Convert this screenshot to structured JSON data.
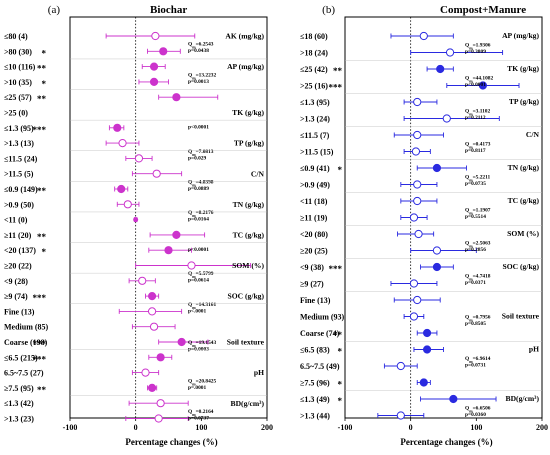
{
  "chart_data": [
    {
      "panel": "(a)",
      "title": "Biochar",
      "type": "forest",
      "xlabel": "Percentage changes (%)",
      "xlim": [
        -100,
        200
      ],
      "xticks": [
        "-100",
        "0",
        "100",
        "200"
      ],
      "color": "#cc33cc",
      "rows": [
        {
          "label": "≤80 (4)",
          "mean": 30,
          "lo": -45,
          "hi": 90,
          "filled": false,
          "sig": ""
        },
        {
          "label": ">80 (30)",
          "mean": 42,
          "lo": 18,
          "hi": 68,
          "filled": true,
          "sig": "*"
        },
        {
          "label": "≤10 (116)",
          "mean": 28,
          "lo": 10,
          "hi": 45,
          "filled": true,
          "sig": "**"
        },
        {
          "label": ">10 (35)",
          "mean": 28,
          "lo": 5,
          "hi": 50,
          "filled": true,
          "sig": "*"
        },
        {
          "label": "≤25 (57)",
          "mean": 62,
          "lo": 35,
          "hi": 125,
          "filled": true,
          "sig": "**"
        },
        {
          "label": ">25 (0)",
          "mean": null,
          "lo": null,
          "hi": null,
          "filled": false,
          "sig": ""
        },
        {
          "label": "≤1.3 (95)",
          "mean": -28,
          "lo": -40,
          "hi": -18,
          "filled": true,
          "sig": "***"
        },
        {
          "label": ">1.3 (13)",
          "mean": -20,
          "lo": -45,
          "hi": 5,
          "filled": false,
          "sig": ""
        },
        {
          "label": "≤11.5 (24)",
          "mean": 5,
          "lo": -15,
          "hi": 25,
          "filled": false,
          "sig": ""
        },
        {
          "label": ">11.5 (5)",
          "mean": 32,
          "lo": -5,
          "hi": 70,
          "filled": false,
          "sig": ""
        },
        {
          "label": "≤0.9 (149)",
          "mean": -22,
          "lo": -32,
          "hi": -12,
          "filled": true,
          "sig": "**"
        },
        {
          "label": ">0.9 (50)",
          "mean": -12,
          "lo": -28,
          "hi": 5,
          "filled": false,
          "sig": ""
        },
        {
          "label": "<11 (0)",
          "mean": 0,
          "lo": -2,
          "hi": 2,
          "filled": true,
          "sig": ""
        },
        {
          "label": "≥11 (20)",
          "mean": 62,
          "lo": 22,
          "hi": 105,
          "filled": true,
          "sig": "**"
        },
        {
          "label": "<20 (137)",
          "mean": 50,
          "lo": 20,
          "hi": 85,
          "filled": true,
          "sig": "*"
        },
        {
          "label": "≥20 (22)",
          "mean": 85,
          "lo": 0,
          "hi": 175,
          "filled": false,
          "sig": ""
        },
        {
          "label": "<9 (28)",
          "mean": 10,
          "lo": -10,
          "hi": 30,
          "filled": false,
          "sig": ""
        },
        {
          "label": "≥9 (74)",
          "mean": 25,
          "lo": 15,
          "hi": 35,
          "filled": true,
          "sig": "***"
        },
        {
          "label": "Fine (13)",
          "mean": 25,
          "lo": -25,
          "hi": 70,
          "filled": false,
          "sig": ""
        },
        {
          "label": "Medium (85)",
          "mean": 28,
          "lo": -5,
          "hi": 60,
          "filled": false,
          "sig": ""
        },
        {
          "label": "Coarse (198)",
          "mean": 70,
          "lo": 35,
          "hi": 110,
          "filled": true,
          "sig": "***"
        },
        {
          "label": "≤6.5 (215)",
          "mean": 38,
          "lo": 20,
          "hi": 55,
          "filled": true,
          "sig": "***"
        },
        {
          "label": "6.5~7.5 (27)",
          "mean": 15,
          "lo": -5,
          "hi": 35,
          "filled": false,
          "sig": ""
        },
        {
          "label": "≥7.5 (95)",
          "mean": 25,
          "lo": 18,
          "hi": 32,
          "filled": true,
          "sig": "**"
        },
        {
          "label": "≤1.3 (42)",
          "mean": 38,
          "lo": -10,
          "hi": 80,
          "filled": false,
          "sig": ""
        },
        {
          "label": ">1.3 (23)",
          "mean": 35,
          "lo": -15,
          "hi": 80,
          "filled": false,
          "sig": ""
        }
      ],
      "groups": [
        {
          "name": "AK (mg/kg)",
          "q": "Q_m=6.2543",
          "p": "p=0.0438"
        },
        {
          "name": "AP (mg/kg)",
          "q": "Q_m=13.2232",
          "p": "p=0.0013"
        },
        {
          "name": "TK (g/kg)",
          "q": "",
          "p": "p<0.0001"
        },
        {
          "name": "TP (g/kg)",
          "q": "Q_m=7.0813",
          "p": "p=0.029"
        },
        {
          "name": "C/N",
          "q": "Q_m=4.8398",
          "p": "p=0.0889"
        },
        {
          "name": "TN (g/kg)",
          "q": "Q_m=8.2176",
          "p": "p=0.0164"
        },
        {
          "name": "TC (g/kg)",
          "q": "",
          "p": "p<0.0001"
        },
        {
          "name": "SOM (%)",
          "q": "Q_m=5.5799",
          "p": "p=0.0614"
        },
        {
          "name": "SOC (g/kg)",
          "q": "Q_m=14.3161",
          "p": "p<.0001"
        },
        {
          "name": "Soil texture",
          "q": "Q_m=19.1543",
          "p": "p=0.0003"
        },
        {
          "name": "pH",
          "q": "Q_m=20.8425",
          "p": "p=.0001"
        },
        {
          "name": "BD(g/cm³)",
          "q": "Q_m=0.2164",
          "p": "p=0.0737"
        }
      ]
    },
    {
      "panel": "(b)",
      "title": "Compost+Manure",
      "type": "forest",
      "xlabel": "Percentage changes (%)",
      "xlim": [
        -100,
        200
      ],
      "xticks": [
        "-100",
        "0",
        "100",
        "200"
      ],
      "color": "#2a2ae0",
      "rows": [
        {
          "label": "≤18 (60)",
          "mean": 20,
          "lo": -30,
          "hi": 65,
          "filled": false,
          "sig": ""
        },
        {
          "label": ">18 (24)",
          "mean": 60,
          "lo": 0,
          "hi": 140,
          "filled": false,
          "sig": ""
        },
        {
          "label": "≤25 (42)",
          "mean": 45,
          "lo": 25,
          "hi": 65,
          "filled": true,
          "sig": "**"
        },
        {
          "label": ">25 (16)",
          "mean": 110,
          "lo": 55,
          "hi": 165,
          "filled": true,
          "sig": "***"
        },
        {
          "label": "≤1.3 (95)",
          "mean": 10,
          "lo": -10,
          "hi": 40,
          "filled": false,
          "sig": ""
        },
        {
          "label": ">1.3 (24)",
          "mean": 55,
          "lo": -10,
          "hi": 135,
          "filled": false,
          "sig": ""
        },
        {
          "label": "≤11.5 (7)",
          "mean": 10,
          "lo": -25,
          "hi": 50,
          "filled": false,
          "sig": ""
        },
        {
          "label": ">11.5 (15)",
          "mean": 8,
          "lo": -10,
          "hi": 30,
          "filled": false,
          "sig": ""
        },
        {
          "label": "≤0.9 (41)",
          "mean": 40,
          "lo": 10,
          "hi": 85,
          "filled": true,
          "sig": "*"
        },
        {
          "label": ">0.9 (49)",
          "mean": 10,
          "lo": -15,
          "hi": 40,
          "filled": false,
          "sig": ""
        },
        {
          "label": "<11 (18)",
          "mean": 10,
          "lo": -15,
          "hi": 40,
          "filled": false,
          "sig": ""
        },
        {
          "label": "≥11 (19)",
          "mean": 5,
          "lo": -15,
          "hi": 25,
          "filled": false,
          "sig": ""
        },
        {
          "label": "<20 (80)",
          "mean": 12,
          "lo": -20,
          "hi": 35,
          "filled": false,
          "sig": ""
        },
        {
          "label": "≥20 (25)",
          "mean": 40,
          "lo": 0,
          "hi": 100,
          "filled": false,
          "sig": ""
        },
        {
          "label": "<9 (38)",
          "mean": 40,
          "lo": 15,
          "hi": 65,
          "filled": true,
          "sig": "***"
        },
        {
          "label": "≥9 (27)",
          "mean": 5,
          "lo": -30,
          "hi": 40,
          "filled": false,
          "sig": ""
        },
        {
          "label": "Fine (13)",
          "mean": 10,
          "lo": -25,
          "hi": 45,
          "filled": false,
          "sig": ""
        },
        {
          "label": "Medium (93)",
          "mean": 5,
          "lo": -10,
          "hi": 20,
          "filled": false,
          "sig": ""
        },
        {
          "label": "Coarse (74)",
          "mean": 25,
          "lo": 10,
          "hi": 40,
          "filled": true,
          "sig": "**"
        },
        {
          "label": "≤6.5 (83)",
          "mean": 25,
          "lo": 5,
          "hi": 50,
          "filled": true,
          "sig": "*"
        },
        {
          "label": "6.5~7.5 (49)",
          "mean": -15,
          "lo": -40,
          "hi": 10,
          "filled": false,
          "sig": ""
        },
        {
          "label": "≥7.5 (96)",
          "mean": 20,
          "lo": 10,
          "hi": 30,
          "filled": true,
          "sig": "*"
        },
        {
          "label": "≤1.3 (49)",
          "mean": 65,
          "lo": 15,
          "hi": 130,
          "filled": true,
          "sig": "*"
        },
        {
          "label": ">1.3 (44)",
          "mean": -15,
          "lo": -50,
          "hi": 20,
          "filled": false,
          "sig": ""
        }
      ],
      "groups": [
        {
          "name": "AP (mg/kg)",
          "q": "Q_m=1.9306",
          "p": "p=0.3809"
        },
        {
          "name": "TK (g/kg)",
          "q": "Q_m=44.1082",
          "p": "p<0.0001"
        },
        {
          "name": "TP (g/kg)",
          "q": "Q_m=3.1102",
          "p": "p=0.2112"
        },
        {
          "name": "C/N",
          "q": "Q_m=0.4173",
          "p": "p=0.8117"
        },
        {
          "name": "TN (g/kg)",
          "q": "Q_m=5.2211",
          "p": "p=0.0735"
        },
        {
          "name": "TC (g/kg)",
          "q": "Q_m=1.1907",
          "p": "p=0.5514"
        },
        {
          "name": "SOM (%)",
          "q": "Q_m=2.5063",
          "p": "p=0.2856"
        },
        {
          "name": "SOC (g/kg)",
          "q": "Q_m=4.7418",
          "p": "p=0.0371"
        },
        {
          "name": "Soil texture",
          "q": "Q_m=0.7956",
          "p": "p=0.8505"
        },
        {
          "name": "pH",
          "q": "Q_m=6.9614",
          "p": "p=0.0731"
        },
        {
          "name": "BD(g/cm³)",
          "q": "Q_m=6.6506",
          "p": "p=0.0360"
        }
      ]
    }
  ]
}
